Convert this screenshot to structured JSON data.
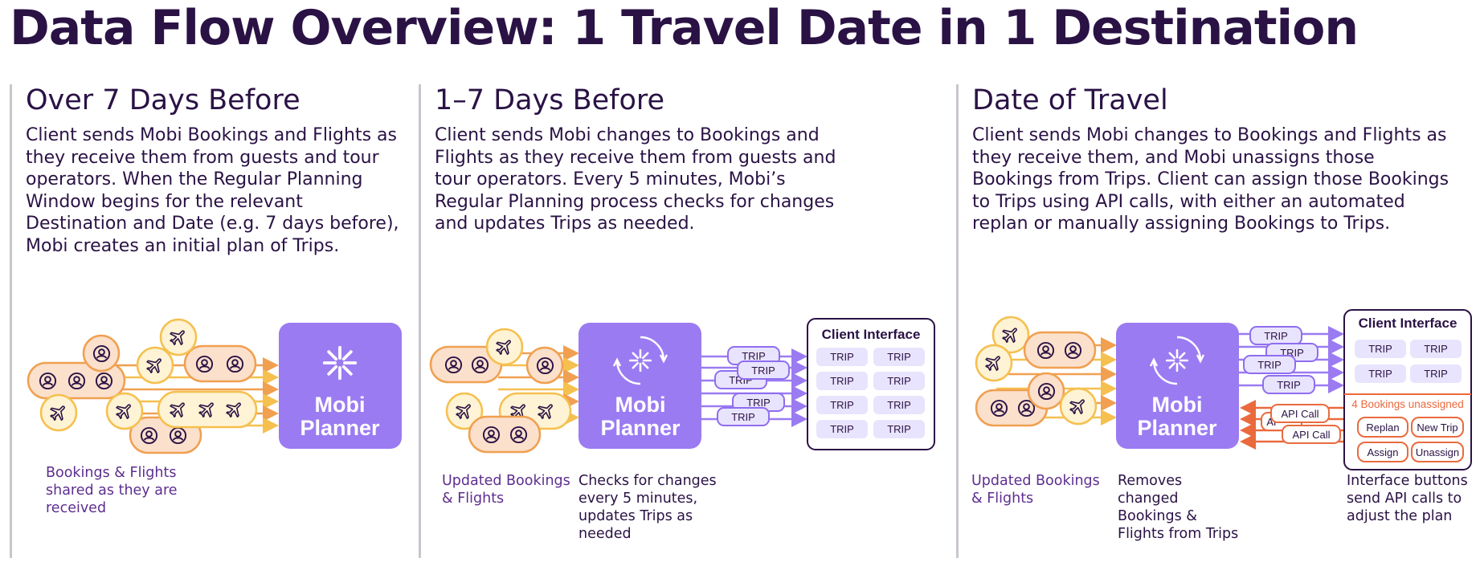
{
  "title": "Data Flow Overview: 1 Travel Date in 1 Destination",
  "colors": {
    "purple": "#9b7bf2",
    "purple_light": "#e9e4fd",
    "purple_stroke": "#8f6ef0",
    "orange": "#f0a050",
    "orange_fill": "#fbe0cc",
    "yellow": "#f5c04f",
    "yellow_fill": "#fef3d4",
    "red": "#ea6a3e",
    "dark": "#2a1245"
  },
  "panels": [
    {
      "heading": "Over 7 Days Before",
      "description": "Client sends Mobi Bookings and Flights as they receive them from guests and tour operators. When the Regular Planning Window begins for the relevant Destination and Date (e.g. 7 days before), Mobi creates an initial plan of Trips.",
      "planner_line1": "Mobi",
      "planner_line2": "Planner",
      "caption_left": "Bookings & Flights shared as they are received"
    },
    {
      "heading": "1–7 Days Before",
      "description": "Client sends Mobi changes to Bookings and Flights as they receive them from guests and tour operators. Every 5 minutes, Mobi’s Regular Planning process checks for changes and updates Trips as needed.",
      "planner_line1": "Mobi",
      "planner_line2": "Planner",
      "caption_left": "Updated Bookings & Flights",
      "caption_middle": "Checks for changes every 5 minutes, updates Trips as needed",
      "trip_label": "TRIP",
      "client_interface": {
        "title": "Client Interface",
        "cells": [
          "TRIP",
          "TRIP",
          "TRIP",
          "TRIP",
          "TRIP",
          "TRIP",
          "TRIP",
          "TRIP"
        ]
      }
    },
    {
      "heading": "Date of Travel",
      "description": "Client sends Mobi changes to Bookings and Flights as they receive them, and Mobi unassigns those Bookings from Trips. Client can assign those Bookings to Trips using API calls, with either an automated replan or manually assigning Bookings to Trips.",
      "planner_line1": "Mobi",
      "planner_line2": "Planner",
      "caption_left": "Updated Bookings & Flights",
      "caption_middle": "Removes changed Bookings & Flights from Trips",
      "caption_right": "Interface buttons send API calls to adjust the plan",
      "trip_label": "TRIP",
      "api_label": "API Call",
      "api_partial": "AP",
      "client_interface": {
        "title": "Client Interface",
        "cells": [
          "TRIP",
          "TRIP",
          "TRIP",
          "TRIP"
        ],
        "unassigned": "4 Bookings unassigned",
        "buttons": [
          "Replan",
          "New Trip",
          "Assign",
          "Unassign"
        ]
      }
    }
  ]
}
